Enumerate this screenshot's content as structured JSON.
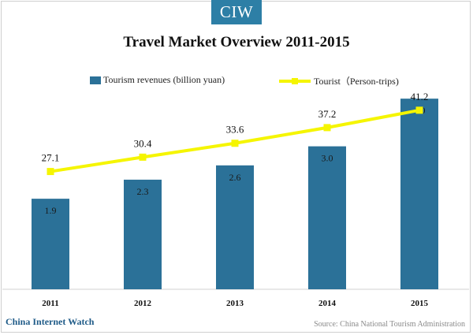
{
  "header": {
    "badge": "CIW"
  },
  "chart_data": {
    "type": "bar+line",
    "title": "Travel Market Overview 2011-2015",
    "categories": [
      "2011",
      "2012",
      "2013",
      "2014",
      "2015"
    ],
    "series": [
      {
        "name": "Tourism revenues (billion yuan)",
        "type": "bar",
        "values": [
          1.9,
          2.3,
          2.6,
          3.0,
          4.0
        ],
        "color": "#2b7198"
      },
      {
        "name": "Tourist（Person-trips)",
        "type": "line",
        "values": [
          27.1,
          30.4,
          33.6,
          37.2,
          41.2
        ],
        "color": "#f5f500"
      }
    ],
    "bar_ylim": [
      0,
      4.35
    ],
    "line_ylim": [
      0,
      47.7
    ],
    "grid": false,
    "legend_position": "top"
  },
  "footer": {
    "brand": "China Internet Watch",
    "source": "Source: China National Tourism Administration"
  },
  "colors": {
    "brand_blue": "#2d7fa6",
    "bar": "#2b7198",
    "line": "#f5f500",
    "axis": "#d0d0d0"
  }
}
